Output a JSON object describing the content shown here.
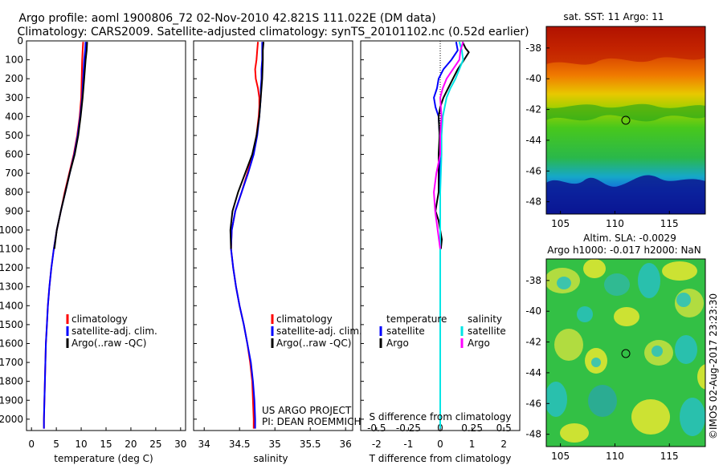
{
  "header": {
    "line1": "Argo profile: aoml 1900806_72 02-Nov-2010 42.821S 111.022E (DM data)",
    "line2": "Climatology: CARS2009. Satellite-adjusted climatology: synTS_20101102.nc (0.52d earlier)"
  },
  "colors": {
    "climatology": "#ff0000",
    "satellite": "#0000ff",
    "argo": "#000000",
    "sat_salinity": "#00e5e5",
    "argo_salinity": "#ff00ff"
  },
  "chart_data": [
    {
      "type": "line",
      "id": "temperature",
      "xlabel": "temperature (deg C)",
      "ylabel": "",
      "xlim": [
        -1,
        31
      ],
      "ylim": [
        2060,
        0
      ],
      "xticks": [
        0,
        5,
        10,
        15,
        20,
        25,
        30
      ],
      "yticks": [
        0,
        100,
        200,
        300,
        400,
        500,
        600,
        700,
        800,
        900,
        1000,
        1100,
        1200,
        1300,
        1400,
        1500,
        1600,
        1700,
        1800,
        1900,
        2000
      ],
      "legend": [
        "climatology",
        "satellite-adj. clim.",
        "Argo(..raw -QC)"
      ],
      "series": [
        {
          "name": "climatology",
          "color": "#ff0000",
          "depth": [
            5,
            50,
            100,
            200,
            300,
            400,
            500,
            600,
            700,
            800,
            900,
            1000,
            1100,
            1200,
            1300,
            1400,
            1500,
            1600,
            1700,
            1800,
            1900,
            2000,
            2050
          ],
          "values": [
            10.4,
            10.3,
            10.2,
            10.1,
            10.0,
            9.7,
            9.2,
            8.5,
            7.6,
            6.7,
            5.9,
            5.1,
            4.5,
            4.0,
            3.6,
            3.3,
            3.1,
            2.9,
            2.8,
            2.7,
            2.6,
            2.5,
            2.5
          ]
        },
        {
          "name": "satellite-adj. clim.",
          "color": "#0000ff",
          "depth": [
            5,
            50,
            100,
            200,
            300,
            400,
            500,
            600,
            700,
            800,
            900,
            1000,
            1100,
            1200,
            1300,
            1400,
            1500,
            1600,
            1700,
            1800,
            1900,
            2000,
            2050
          ],
          "values": [
            10.9,
            10.8,
            10.6,
            10.4,
            10.2,
            9.8,
            9.3,
            8.6,
            7.7,
            6.8,
            5.9,
            5.1,
            4.5,
            4.0,
            3.6,
            3.3,
            3.1,
            2.9,
            2.8,
            2.7,
            2.6,
            2.5,
            2.5
          ]
        },
        {
          "name": "Argo(..raw -QC)",
          "color": "#000000",
          "depth": [
            5,
            50,
            100,
            200,
            300,
            400,
            500,
            600,
            700,
            800,
            900,
            1000,
            1100
          ],
          "values": [
            11.2,
            11.1,
            10.9,
            10.6,
            10.3,
            9.9,
            9.4,
            8.7,
            7.7,
            6.8,
            5.9,
            5.1,
            4.6
          ]
        }
      ]
    },
    {
      "type": "line",
      "id": "salinity",
      "xlabel": "salinity",
      "ylabel": "",
      "xlim": [
        33.85,
        36.1
      ],
      "ylim": [
        2060,
        0
      ],
      "xticks": [
        34,
        34.5,
        35,
        35.5,
        36
      ],
      "legend": [
        "climatology",
        "satellite-adj. clim.",
        "Argo(..raw -QC)"
      ],
      "annotation": [
        "US ARGO PROJECT",
        "PI: DEAN ROEMMICH"
      ],
      "series": [
        {
          "name": "climatology",
          "color": "#ff0000",
          "depth": [
            5,
            50,
            100,
            150,
            200,
            250,
            300,
            350,
            400,
            500,
            600,
            700,
            800,
            900,
            1000,
            1100,
            1200,
            1300,
            1400,
            1500,
            1600,
            1700,
            1800,
            1900,
            2000,
            2050
          ],
          "values": [
            34.76,
            34.75,
            34.74,
            34.72,
            34.73,
            34.76,
            34.78,
            34.78,
            34.77,
            34.74,
            34.69,
            34.61,
            34.53,
            34.44,
            34.39,
            34.38,
            34.41,
            34.45,
            34.5,
            34.56,
            34.61,
            34.65,
            34.68,
            34.69,
            34.7,
            34.7
          ]
        },
        {
          "name": "satellite-adj. clim.",
          "color": "#0000ff",
          "depth": [
            5,
            50,
            100,
            150,
            200,
            250,
            300,
            350,
            400,
            500,
            600,
            700,
            800,
            900,
            1000,
            1100,
            1200,
            1300,
            1400,
            1500,
            1600,
            1700,
            1800,
            1900,
            2000,
            2050
          ],
          "values": [
            34.82,
            34.82,
            34.82,
            34.81,
            34.81,
            34.8,
            34.8,
            34.79,
            34.78,
            34.75,
            34.7,
            34.62,
            34.53,
            34.44,
            34.39,
            34.38,
            34.41,
            34.45,
            34.5,
            34.56,
            34.61,
            34.66,
            34.69,
            34.71,
            34.72,
            34.72
          ]
        },
        {
          "name": "Argo(..raw -QC)",
          "color": "#000000",
          "depth": [
            5,
            50,
            100,
            200,
            300,
            400,
            500,
            600,
            700,
            800,
            900,
            1000,
            1100
          ],
          "values": [
            34.84,
            34.83,
            34.83,
            34.82,
            34.8,
            34.78,
            34.74,
            34.68,
            34.58,
            34.48,
            34.4,
            34.37,
            34.38
          ]
        }
      ]
    },
    {
      "type": "line",
      "id": "difference",
      "xlabel": "T difference from climatology",
      "xlabel_top": "S difference from climatology",
      "xlim": [
        -2.5,
        2.5
      ],
      "ylim": [
        2060,
        0
      ],
      "xticks": [
        -2,
        -1,
        0,
        1,
        2
      ],
      "xtick_labels": [
        "-2",
        "-1",
        "0",
        "1",
        "2"
      ],
      "s_ticks": [
        -0.5,
        -0.25,
        0,
        0.25,
        0.5
      ],
      "s_tick_labels": [
        "-0.5",
        "-0.25",
        "0",
        "0.25",
        "0.5"
      ],
      "legend_temperature": {
        "title": "temperature",
        "items": [
          "satellite",
          "Argo"
        ]
      },
      "legend_salinity": {
        "title": "salinity",
        "items": [
          "satellite",
          "Argo"
        ]
      },
      "series": [
        {
          "name": "T satellite",
          "color": "#0000ff",
          "depth": [
            5,
            50,
            100,
            150,
            200,
            250,
            300,
            350,
            400,
            500,
            600,
            700,
            800,
            900,
            1000,
            1100,
            1200,
            1400,
            1600,
            1800,
            2000,
            2050
          ],
          "values": [
            0.5,
            0.55,
            0.35,
            0.1,
            -0.05,
            -0.1,
            -0.2,
            -0.15,
            -0.05,
            -0.02,
            0.0,
            0.0,
            0.0,
            0.0,
            0.0,
            0.0,
            0.0,
            0.0,
            0.0,
            0.0,
            0.0,
            0.0
          ]
        },
        {
          "name": "T Argo",
          "color": "#000000",
          "depth": [
            5,
            40,
            60,
            100,
            150,
            200,
            250,
            300,
            350,
            400,
            500,
            600,
            700,
            800,
            850,
            900,
            950,
            1000,
            1050,
            1100
          ],
          "values": [
            0.7,
            0.8,
            0.9,
            0.75,
            0.55,
            0.4,
            0.25,
            0.1,
            0.0,
            -0.05,
            -0.02,
            -0.05,
            -0.05,
            -0.05,
            -0.1,
            -0.15,
            -0.05,
            0.0,
            0.05,
            0.02
          ]
        },
        {
          "name": "S satellite",
          "color": "#00e5e5",
          "depth": [
            5,
            50,
            100,
            150,
            200,
            250,
            300,
            400,
            500,
            600,
            800,
            1000,
            1200,
            1400,
            1600,
            1800,
            2000,
            2050
          ],
          "values": [
            0.15,
            0.17,
            0.18,
            0.15,
            0.12,
            0.08,
            0.05,
            0.02,
            0.01,
            0.01,
            0.0,
            0.0,
            0.0,
            0.0,
            0.0,
            0.0,
            0.0,
            0.0
          ]
        },
        {
          "name": "S Argo",
          "color": "#ff00ff",
          "depth": [
            5,
            50,
            100,
            150,
            200,
            250,
            300,
            400,
            500,
            600,
            700,
            800,
            900,
            1000,
            1100
          ],
          "values": [
            0.18,
            0.16,
            0.15,
            0.1,
            0.05,
            0.02,
            0.0,
            0.01,
            0.0,
            0.0,
            -0.03,
            -0.05,
            -0.04,
            -0.02,
            0.0
          ]
        }
      ]
    }
  ],
  "sst_map": {
    "title": "sat. SST: 11  Argo: 11",
    "yticks": [
      -38,
      -40,
      -42,
      -44,
      -46,
      -48
    ],
    "xticks": [
      105,
      110,
      115
    ],
    "lon_range": [
      103.7,
      118.3
    ],
    "lat_range": [
      -48.8,
      -36.6
    ],
    "marker": {
      "lon": 111.022,
      "lat": -42.821
    }
  },
  "sla_map": {
    "title_line1": "Altim. SLA: -0.0029",
    "title_line2": "Argo h1000: -0.017 h2000: NaN",
    "yticks": [
      -38,
      -40,
      -42,
      -44,
      -46,
      -48
    ],
    "xticks": [
      105,
      110,
      115
    ],
    "lon_range": [
      103.7,
      118.3
    ],
    "lat_range": [
      -48.8,
      -36.6
    ],
    "marker": {
      "lon": 111.022,
      "lat": -42.821
    }
  },
  "footer": {
    "stamp": "©IMOS 02-Aug-2017 23:23:30"
  }
}
